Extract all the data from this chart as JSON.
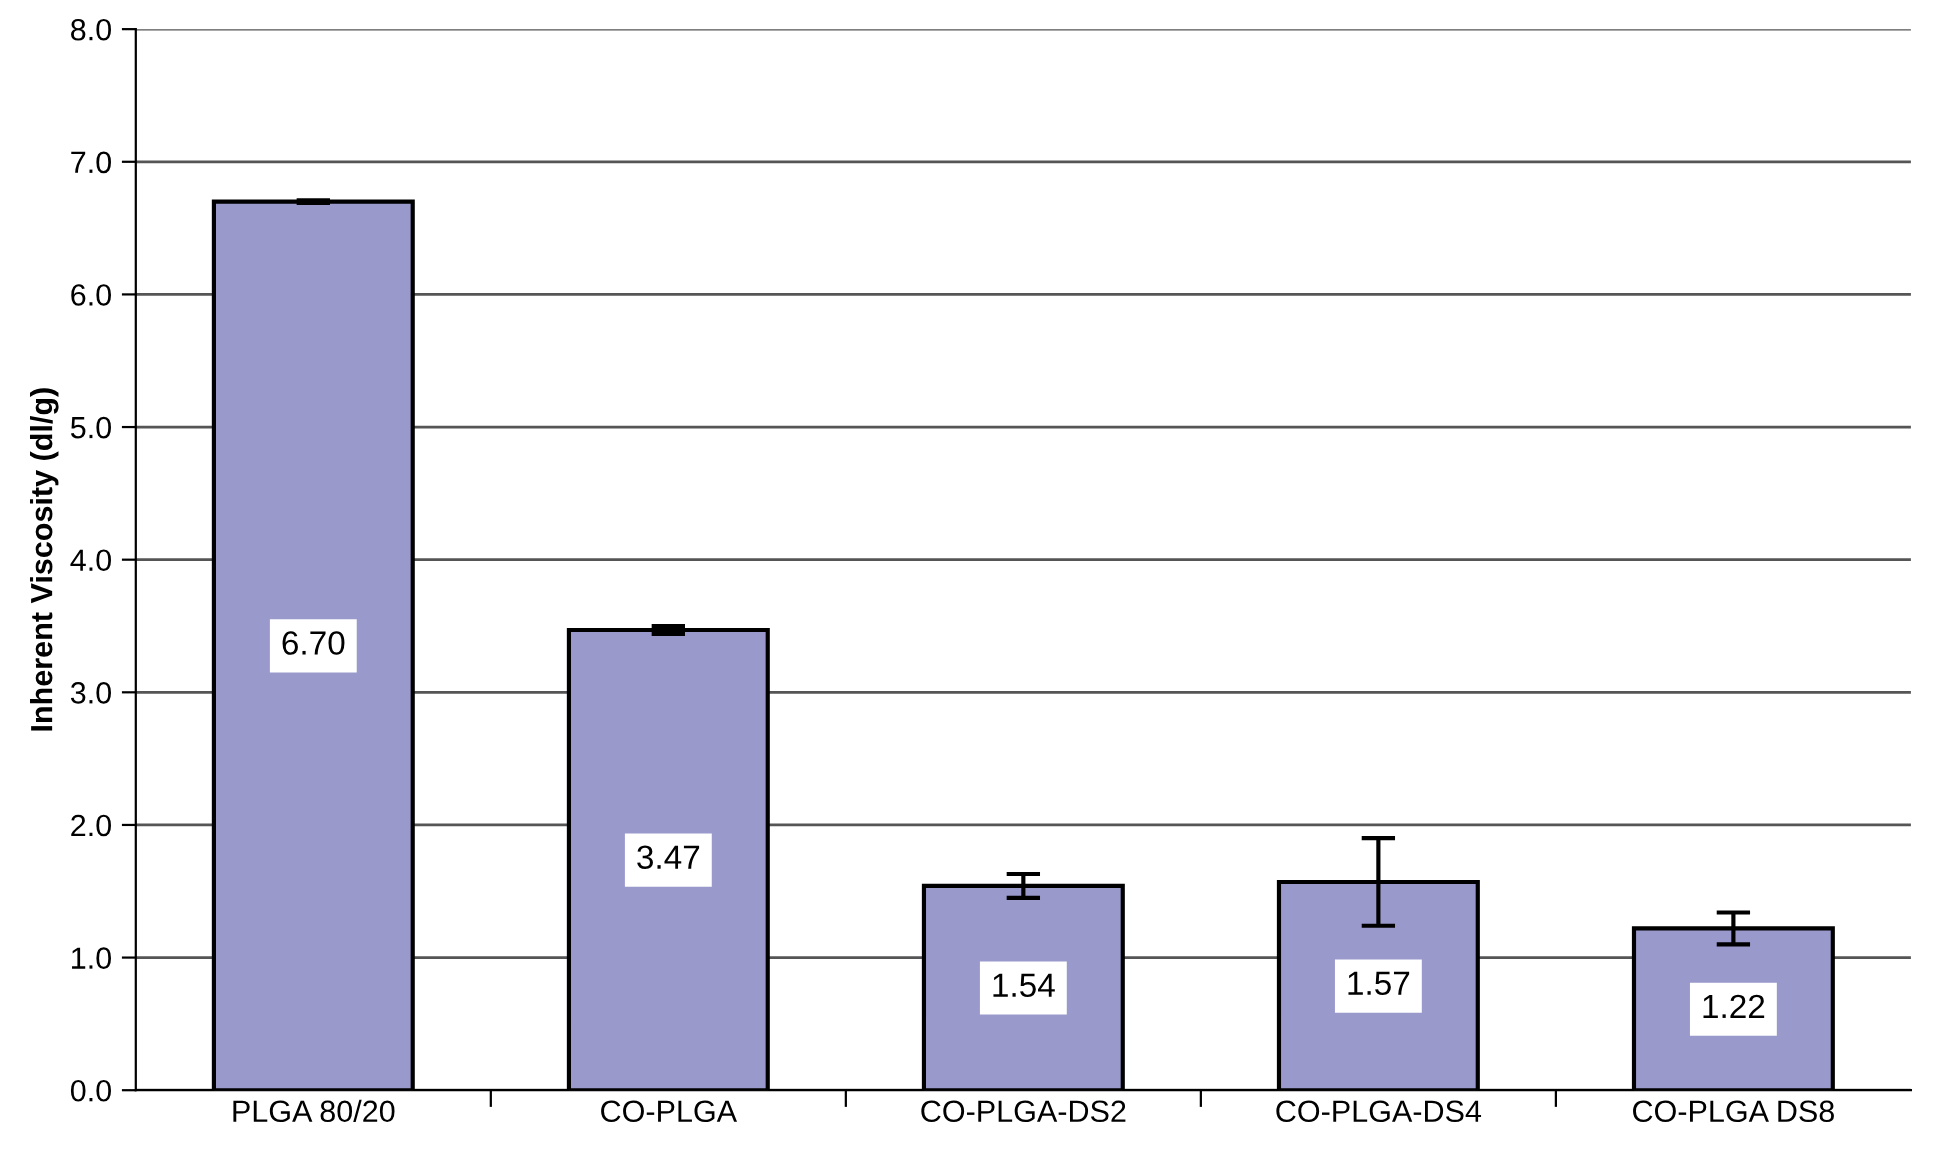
{
  "chart_data": {
    "type": "bar",
    "ylabel": "Inherent Viscosity (dl/g)",
    "categories": [
      "PLGA 80/20",
      "CO-PLGA",
      "CO-PLGA-DS2",
      "CO-PLGA-DS4",
      "CO-PLGA DS8"
    ],
    "values": [
      6.7,
      3.47,
      1.54,
      1.57,
      1.22
    ],
    "errors": [
      0.01,
      0.03,
      0.09,
      0.33,
      0.12
    ],
    "value_labels": [
      "6.70",
      "3.47",
      "1.54",
      "1.57",
      "1.22"
    ],
    "color": "#9999cc",
    "ylim": [
      0,
      8
    ],
    "yticks": [
      {
        "value": 0,
        "label": "0.0"
      },
      {
        "value": 1,
        "label": "1.0"
      },
      {
        "value": 2,
        "label": "2.0"
      },
      {
        "value": 3,
        "label": "3.0"
      },
      {
        "value": 4,
        "label": "4.0"
      },
      {
        "value": 5,
        "label": "5.0"
      },
      {
        "value": 6,
        "label": "6.0"
      },
      {
        "value": 7,
        "label": "7.0"
      },
      {
        "value": 8,
        "label": "8.0"
      }
    ],
    "grid": "y"
  }
}
